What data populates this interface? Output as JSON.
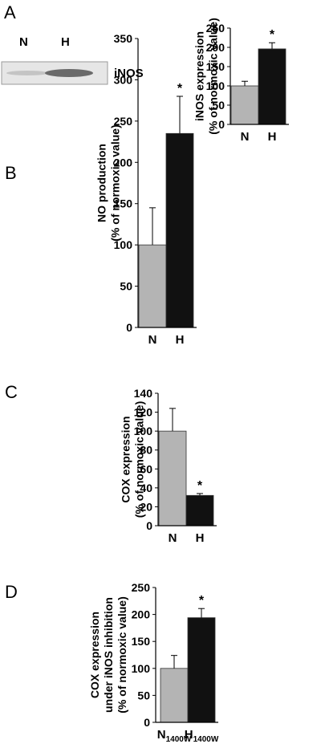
{
  "blot": {
    "lane_labels": [
      "N",
      "H"
    ],
    "protein_label": "iNOS"
  },
  "chart_data": [
    {
      "panel": "A",
      "type": "bar",
      "categories": [
        "N",
        "H"
      ],
      "values": [
        100,
        196
      ],
      "errors": [
        12,
        16
      ],
      "colors": [
        "#b4b4b4",
        "#111111"
      ],
      "significance": [
        "",
        "*"
      ],
      "ylabel_lines": [
        "iNOS expression",
        "(% of normoxic value)"
      ],
      "ylim": [
        0,
        250
      ],
      "yticks": [
        0,
        50,
        100,
        150,
        200,
        250
      ]
    },
    {
      "panel": "B",
      "type": "bar",
      "categories": [
        "N",
        "H"
      ],
      "values": [
        100,
        235
      ],
      "errors": [
        45,
        45
      ],
      "colors": [
        "#b4b4b4",
        "#111111"
      ],
      "significance": [
        "",
        "*"
      ],
      "ylabel_lines": [
        "NO production",
        "(% of normoxic value)"
      ],
      "ylim": [
        0,
        350
      ],
      "yticks": [
        0,
        50,
        100,
        150,
        200,
        250,
        300,
        350
      ]
    },
    {
      "panel": "C",
      "type": "bar",
      "categories": [
        "N",
        "H"
      ],
      "values": [
        100,
        32
      ],
      "errors": [
        24,
        2
      ],
      "colors": [
        "#b4b4b4",
        "#111111"
      ],
      "significance": [
        "",
        "*"
      ],
      "ylabel_lines": [
        "COX expression",
        "(% of normoxic value)"
      ],
      "ylim": [
        0,
        140
      ],
      "yticks": [
        0,
        20,
        40,
        60,
        80,
        100,
        120,
        140
      ]
    },
    {
      "panel": "D",
      "type": "bar",
      "categories": [
        "N",
        "H"
      ],
      "category_subscripts": [
        "1400W",
        "1400W"
      ],
      "values": [
        100,
        194
      ],
      "errors": [
        24,
        17
      ],
      "colors": [
        "#b4b4b4",
        "#111111"
      ],
      "significance": [
        "",
        "*"
      ],
      "ylabel_lines": [
        "COX expression",
        "under iNOS inhibition",
        "(% of normoxic value)"
      ],
      "ylim": [
        0,
        250
      ],
      "yticks": [
        0,
        50,
        100,
        150,
        200,
        250
      ]
    }
  ]
}
